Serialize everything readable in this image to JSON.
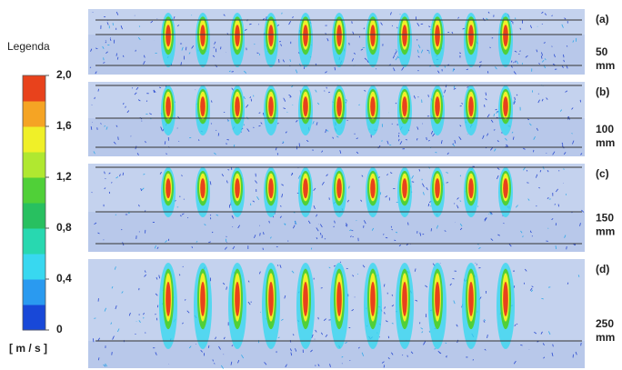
{
  "legend": {
    "title": "Legenda",
    "unit": "[ m / s ]",
    "ticks": [
      {
        "value": 2,
        "label": "2,0"
      },
      {
        "value": 1.6,
        "label": "1,6"
      },
      {
        "value": 1.2,
        "label": "1,2"
      },
      {
        "value": 0.8,
        "label": "0,8"
      },
      {
        "value": 0.4,
        "label": "0,4"
      },
      {
        "value": 0,
        "label": "0"
      }
    ],
    "range": [
      0,
      2
    ],
    "colors": [
      "#1848d8",
      "#2a9af0",
      "#38d8f0",
      "#28d8b0",
      "#28c060",
      "#50d038",
      "#b0e830",
      "#f0f028",
      "#f5a424",
      "#e8421c"
    ]
  },
  "panels": [
    {
      "label": "(a)",
      "depth": 50,
      "unit": "mm"
    },
    {
      "label": "(b)",
      "depth": 100,
      "unit": "mm"
    },
    {
      "label": "(c)",
      "depth": 150,
      "unit": "mm"
    },
    {
      "label": "(d)",
      "depth": 250,
      "unit": "mm"
    }
  ]
}
